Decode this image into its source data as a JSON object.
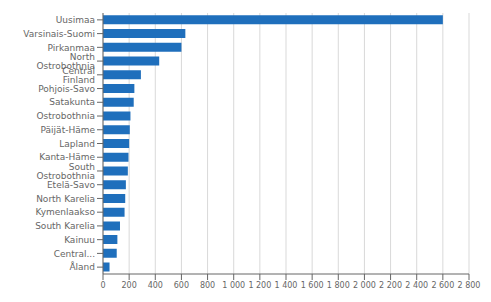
{
  "chart_data": {
    "type": "bar",
    "orientation": "horizontal",
    "categories": [
      "Uusimaa",
      "Varsinais-Suomi",
      "Pirkanmaa",
      "North Ostrobothnia",
      "Central Finland",
      "Pohjois-Savo",
      "Satakunta",
      "Ostrobothnia",
      "Päijät-Häme",
      "Lapland",
      "Kanta-Häme",
      "South Ostrobothnia",
      "Etelä-Savo",
      "North Karelia",
      "Kymenlaakso",
      "South Karelia",
      "Kainuu",
      "Central...",
      "Åland"
    ],
    "values": [
      2600,
      630,
      600,
      430,
      290,
      240,
      235,
      210,
      205,
      200,
      195,
      190,
      175,
      170,
      165,
      130,
      110,
      105,
      50
    ],
    "color": "#1f6fbc",
    "xlim": [
      0,
      2800
    ],
    "xticks": [
      0,
      200,
      400,
      600,
      800,
      {
        "value": 1000,
        "label": "1 000"
      },
      {
        "value": 1200,
        "label": "1 200"
      },
      {
        "value": 1400,
        "label": "1 400"
      },
      {
        "value": 1600,
        "label": "1 600"
      },
      {
        "value": 1800,
        "label": "1 800"
      },
      {
        "value": 2000,
        "label": "2 000"
      },
      {
        "value": 2200,
        "label": "2 200"
      },
      {
        "value": 2400,
        "label": "2 400"
      },
      {
        "value": 2600,
        "label": "2 600"
      },
      {
        "value": 2800,
        "label": "2 800"
      }
    ],
    "grid": true
  }
}
